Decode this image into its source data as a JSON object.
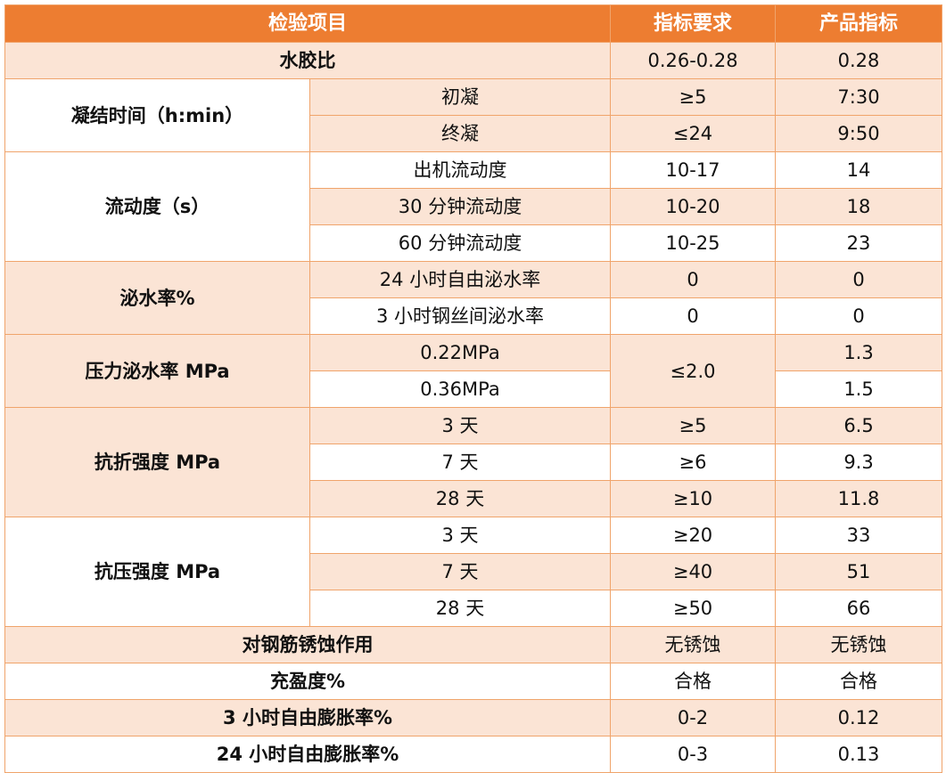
{
  "header": {
    "item": "检验项目",
    "requirement": "指标要求",
    "product": "产品指标"
  },
  "rows": {
    "wb": {
      "label": "水胶比",
      "req": "0.26-0.28",
      "val": "0.28"
    },
    "setting": {
      "label": "凝结时间（h:min）",
      "initial": {
        "label": "初凝",
        "req": "≥5",
        "val": "7:30"
      },
      "final": {
        "label": "终凝",
        "req": "≤24",
        "val": "9:50"
      }
    },
    "fluidity": {
      "label": "流动度（s）",
      "out": {
        "label": "出机流动度",
        "req": "10-17",
        "val": "14"
      },
      "m30": {
        "label": "30 分钟流动度",
        "req": "10-20",
        "val": "18"
      },
      "m60": {
        "label": "60 分钟流动度",
        "req": "10-25",
        "val": "23"
      }
    },
    "bleed": {
      "label": "泌水率%",
      "h24": {
        "label": "24 小时自由泌水率",
        "req": "0",
        "val": "0"
      },
      "h3": {
        "label": "3 小时钢丝间泌水率",
        "req": "0",
        "val": "0"
      }
    },
    "pbleed": {
      "label": "压力泌水率 MPa",
      "req": "≤2.0",
      "a": {
        "label": "0.22MPa",
        "val": "1.3"
      },
      "b": {
        "label": "0.36MPa",
        "val": "1.5"
      }
    },
    "flex": {
      "label": "抗折强度 MPa",
      "d3": {
        "label": "3 天",
        "req": "≥5",
        "val": "6.5"
      },
      "d7": {
        "label": "7 天",
        "req": "≥6",
        "val": "9.3"
      },
      "d28": {
        "label": "28 天",
        "req": "≥10",
        "val": "11.8"
      }
    },
    "comp": {
      "label": "抗压强度 MPa",
      "d3": {
        "label": "3 天",
        "req": "≥20",
        "val": "33"
      },
      "d7": {
        "label": "7 天",
        "req": "≥40",
        "val": "51"
      },
      "d28": {
        "label": "28 天",
        "req": "≥50",
        "val": "66"
      }
    },
    "corrosion": {
      "label": "对钢筋锈蚀作用",
      "req": "无锈蚀",
      "val": "无锈蚀"
    },
    "fullness": {
      "label": "充盈度%",
      "req": "合格",
      "val": "合格"
    },
    "exp3": {
      "label": "3 小时自由膨胀率%",
      "req": "0-2",
      "val": "0.12"
    },
    "exp24": {
      "label": "24 小时自由膨胀率%",
      "req": "0-3",
      "val": "0.13"
    }
  },
  "colors": {
    "header_bg": "#ed7d31",
    "shade_bg": "#fbe4d5",
    "border": "#f0a46b"
  }
}
